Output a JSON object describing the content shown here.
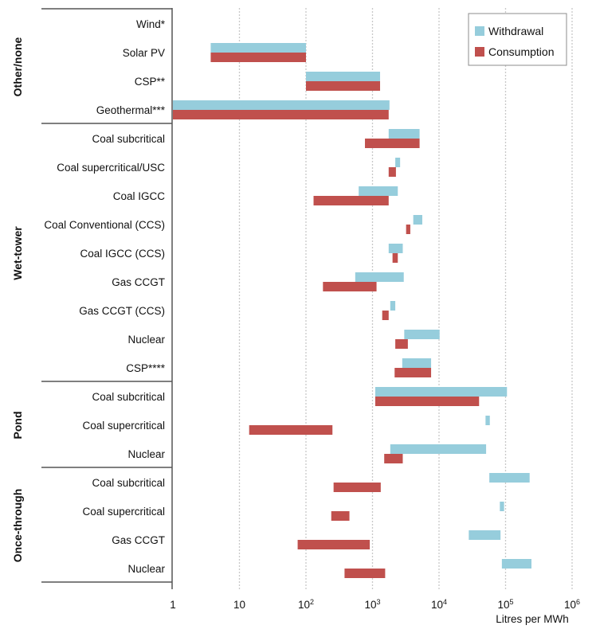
{
  "chart_data": {
    "type": "bar",
    "subtype": "floating-range-horizontal",
    "title": "",
    "xlabel": "Litres per MWh",
    "ylabel": "",
    "xscale": "log",
    "xlim": [
      1,
      1000000
    ],
    "grid": true,
    "legend_position": "top-right",
    "x_ticks": [
      {
        "value": 1,
        "base": "1",
        "exp": ""
      },
      {
        "value": 10,
        "base": "10",
        "exp": ""
      },
      {
        "value": 100,
        "base": "10",
        "exp": "2"
      },
      {
        "value": 1000,
        "base": "10",
        "exp": "3"
      },
      {
        "value": 10000,
        "base": "10",
        "exp": "4"
      },
      {
        "value": 100000,
        "base": "10",
        "exp": "5"
      },
      {
        "value": 1000000,
        "base": "10",
        "exp": "6"
      }
    ],
    "series": [
      {
        "name": "Withdrawal",
        "key": "w",
        "color": "#96cddc"
      },
      {
        "name": "Consumption",
        "key": "c",
        "color": "#c0504d"
      }
    ],
    "groups": [
      {
        "name": "Other/none",
        "rows": [
          {
            "label": "Wind*",
            "w": null,
            "c": null
          },
          {
            "label": "Solar PV",
            "w": [
              3.7,
              100
            ],
            "c": [
              3.7,
              100
            ]
          },
          {
            "label": "CSP**",
            "w": [
              100,
              1300
            ],
            "c": [
              100,
              1300
            ]
          },
          {
            "label": "Geothermal***",
            "w": [
              1,
              1800
            ],
            "c": [
              1,
              1750
            ]
          }
        ]
      },
      {
        "name": "Wet-tower",
        "rows": [
          {
            "label": "Coal subcritical",
            "w": [
              1750,
              5100
            ],
            "c": [
              770,
              5100
            ]
          },
          {
            "label": "Coal supercritical/USC",
            "w": [
              2200,
              2600
            ],
            "c": [
              1750,
              2250
            ]
          },
          {
            "label": "Coal IGCC",
            "w": [
              620,
              2400
            ],
            "c": [
              130,
              1750
            ]
          },
          {
            "label": "Coal Conventional (CCS)",
            "w": [
              4100,
              5600
            ],
            "c": [
              3200,
              3700
            ]
          },
          {
            "label": "Coal IGCC (CCS)",
            "w": [
              1750,
              2850
            ],
            "c": [
              2000,
              2400
            ]
          },
          {
            "label": "Gas CCGT",
            "w": [
              550,
              2950
            ],
            "c": [
              180,
              1150
            ]
          },
          {
            "label": "Gas CCGT (CCS)",
            "w": [
              1850,
              2200
            ],
            "c": [
              1400,
              1750
            ]
          },
          {
            "label": "Nuclear",
            "w": [
              3000,
              10200
            ],
            "c": [
              2200,
              3400
            ]
          },
          {
            "label": "CSP****",
            "w": [
              2800,
              7600
            ],
            "c": [
              2150,
              7600
            ]
          }
        ]
      },
      {
        "name": "Pond",
        "rows": [
          {
            "label": "Coal subcritical",
            "w": [
              1100,
              105000
            ],
            "c": [
              1100,
              40000
            ]
          },
          {
            "label": "Coal supercritical",
            "w": [
              50000,
              58000
            ],
            "c": [
              14,
              250
            ]
          },
          {
            "label": "Nuclear",
            "w": [
              1850,
              51000
            ],
            "c": [
              1500,
              2850
            ]
          }
        ]
      },
      {
        "name": "Once-through",
        "rows": [
          {
            "label": "Coal subcritical",
            "w": [
              57000,
              230000
            ],
            "c": [
              260,
              1330
            ]
          },
          {
            "label": "Coal supercritical",
            "w": [
              82000,
              95000
            ],
            "c": [
              240,
              450
            ]
          },
          {
            "label": "Gas CCGT",
            "w": [
              28000,
              84000
            ],
            "c": [
              75,
              910
            ]
          },
          {
            "label": "Nuclear",
            "w": [
              88000,
              245000
            ],
            "c": [
              380,
              1550
            ]
          }
        ]
      }
    ]
  }
}
